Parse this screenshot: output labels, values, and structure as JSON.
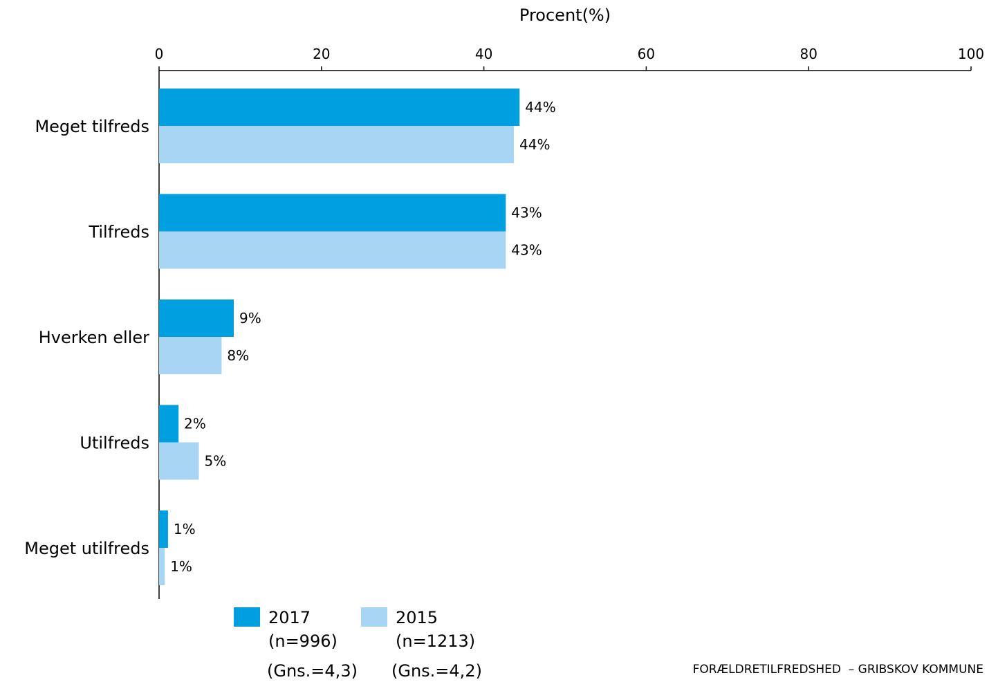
{
  "chart_data": {
    "type": "bar",
    "orientation": "horizontal",
    "xlabel": "Procent(%)",
    "xlim": [
      0,
      100
    ],
    "xticks": [
      0,
      20,
      40,
      60,
      80,
      100
    ],
    "categories": [
      "Meget tilfreds",
      "Tilfreds",
      "Hverken eller",
      "Utilfreds",
      "Meget utilfreds"
    ],
    "series": [
      {
        "name": "2017",
        "values": [
          44.4,
          42.7,
          9.2,
          2.4,
          1.1
        ],
        "labels": [
          "44%",
          "43%",
          "9%",
          "2%",
          "1%"
        ],
        "color": "#009fe0"
      },
      {
        "name": "2015",
        "values": [
          43.7,
          42.7,
          7.7,
          4.9,
          0.7
        ],
        "labels": [
          "44%",
          "43%",
          "8%",
          "5%",
          "1%"
        ],
        "color": "#a8d5f4"
      }
    ],
    "legend_placement": "bottom"
  },
  "legend": {
    "items": [
      {
        "line1": "2017",
        "line2": "(n=996)",
        "gns": "(Gns.=4,3)",
        "color": "#009fe0"
      },
      {
        "line1": "2015",
        "line2": "(n=1213)",
        "gns": "(Gns.=4,2)",
        "color": "#a8d5f4"
      }
    ]
  },
  "footer": "FORÆLDRETILFREDSHED  – GRIBSKOV KOMMUNE"
}
